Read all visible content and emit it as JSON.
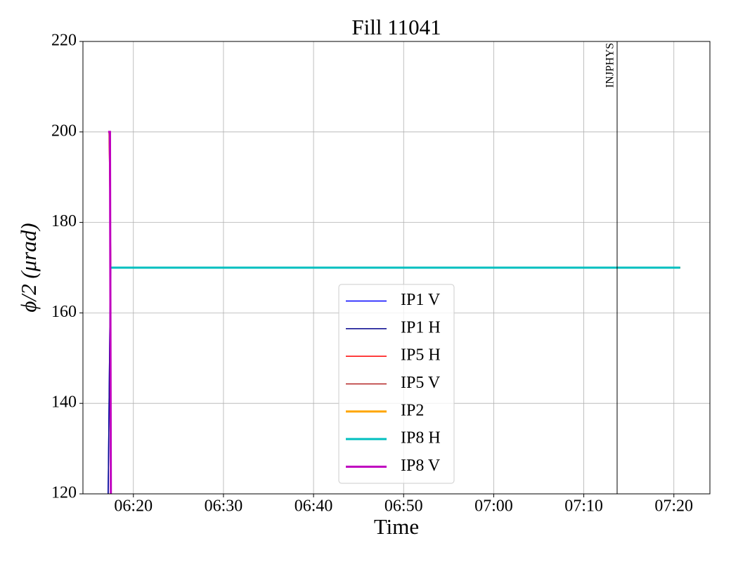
{
  "chart_data": {
    "type": "line",
    "title": "Fill 11041",
    "xlabel": "Time",
    "ylabel": "ϕ/2 (μrad)",
    "xlim": [
      374.4,
      444.0
    ],
    "xticks": [
      {
        "value": 380,
        "label": "06:20"
      },
      {
        "value": 390,
        "label": "06:30"
      },
      {
        "value": 400,
        "label": "06:40"
      },
      {
        "value": 410,
        "label": "06:50"
      },
      {
        "value": 420,
        "label": "07:00"
      },
      {
        "value": 430,
        "label": "07:10"
      },
      {
        "value": 440,
        "label": "07:20"
      }
    ],
    "ylim": [
      120,
      220
    ],
    "yticks": [
      120,
      140,
      160,
      180,
      200,
      220
    ],
    "grid": true,
    "legend": "lower center",
    "series": [
      {
        "name": "IP1 V",
        "color": "#0000ff",
        "linewidth": 1.5,
        "x": [
          377.2,
          377.4,
          377.5,
          440.7
        ],
        "values": [
          120,
          160,
          170,
          170
        ]
      },
      {
        "name": "IP1 H",
        "color": "#00008b",
        "linewidth": 1.5,
        "x": [
          377.2,
          377.4,
          377.5,
          440.7
        ],
        "values": [
          120,
          160,
          170,
          170
        ]
      },
      {
        "name": "IP5 H",
        "color": "#ff0000",
        "linewidth": 1.5,
        "x": [
          377.3,
          377.5,
          440.7
        ],
        "values": [
          200,
          170,
          170
        ]
      },
      {
        "name": "IP5 V",
        "color": "#b22222",
        "linewidth": 1.5,
        "x": [
          377.3,
          377.5,
          440.7
        ],
        "values": [
          200,
          170,
          170
        ]
      },
      {
        "name": "IP2",
        "color": "#ffa500",
        "linewidth": 3,
        "x": [
          377.5,
          440.7
        ],
        "values": [
          170,
          170
        ]
      },
      {
        "name": "IP8 H",
        "color": "#00bfbf",
        "linewidth": 3,
        "x": [
          377.5,
          440.7
        ],
        "values": [
          170,
          170
        ]
      },
      {
        "name": "IP8 V",
        "color": "#bf00bf",
        "linewidth": 3,
        "x": [
          377.2,
          377.4,
          377.5
        ],
        "values": [
          200,
          200,
          120
        ]
      }
    ],
    "annotations": [
      {
        "text": "INJPHYS",
        "x": 433.7
      }
    ]
  }
}
